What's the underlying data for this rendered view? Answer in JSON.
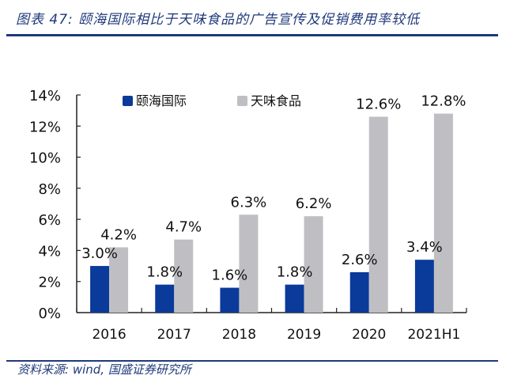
{
  "header": {
    "title": "图表 47: 颐海国际相比于天味食品的广告宣传及促销费用率较低"
  },
  "footer": {
    "source": "资料来源: wind, 国盛证券研究所"
  },
  "colors": {
    "series1": "#0a3a9a",
    "series2": "#bfbfc3",
    "rule": "#1f3a7a"
  },
  "chart_data": {
    "type": "bar",
    "title": "颐海国际相比于天味食品的广告宣传及促销费用率较低",
    "xlabel": "",
    "ylabel": "",
    "categories": [
      "2016",
      "2017",
      "2018",
      "2019",
      "2020",
      "2021H1"
    ],
    "series": [
      {
        "name": "颐海国际",
        "values": [
          3.0,
          1.8,
          1.6,
          1.8,
          2.6,
          3.4
        ],
        "labels": [
          "3.0%",
          "1.8%",
          "1.6%",
          "1.8%",
          "2.6%",
          "3.4%"
        ]
      },
      {
        "name": "天味食品",
        "values": [
          4.2,
          4.7,
          6.3,
          6.2,
          12.6,
          12.8
        ],
        "labels": [
          "4.2%",
          "4.7%",
          "6.3%",
          "6.2%",
          "12.6%",
          "12.8%"
        ]
      }
    ],
    "ylim": [
      0,
      14
    ],
    "yticks": [
      "0%",
      "2%",
      "4%",
      "6%",
      "8%",
      "10%",
      "12%",
      "14%"
    ],
    "ytick_values": [
      0,
      2,
      4,
      6,
      8,
      10,
      12,
      14
    ],
    "grid": false,
    "legend": "top"
  }
}
